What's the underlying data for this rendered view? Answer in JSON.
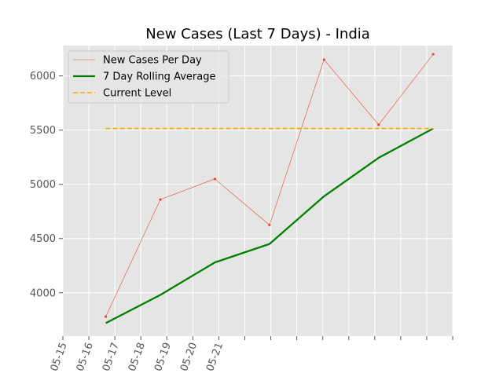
{
  "chart_data": {
    "type": "line",
    "title": "New Cases (Last 7 Days) - India",
    "xlabel": "",
    "ylabel": "",
    "x_tick_labels": [
      "05-15",
      "05-16",
      "05-17",
      "05-18",
      "05-19",
      "05-20",
      "05-21"
    ],
    "ylim": [
      3600,
      6280
    ],
    "y_ticks": [
      4000,
      4500,
      5000,
      5500,
      6000
    ],
    "grid": true,
    "legend_position": "upper-left",
    "series": [
      {
        "name": "New Cases Per Day",
        "style": "thin-line-with-markers",
        "color": "#E24A33",
        "points": [
          {
            "x": 1.65,
            "y": 3780
          },
          {
            "x": 3.75,
            "y": 4860
          },
          {
            "x": 5.85,
            "y": 5050
          },
          {
            "x": 7.95,
            "y": 4625
          },
          {
            "x": 10.05,
            "y": 6150
          },
          {
            "x": 12.15,
            "y": 5550
          },
          {
            "x": 14.25,
            "y": 6200
          }
        ]
      },
      {
        "name": "7 Day Rolling Average",
        "style": "thick-line",
        "color": "#008000",
        "points": [
          {
            "x": 1.65,
            "y": 3720
          },
          {
            "x": 3.75,
            "y": 3980
          },
          {
            "x": 5.85,
            "y": 4280
          },
          {
            "x": 7.95,
            "y": 4450
          },
          {
            "x": 10.05,
            "y": 4890
          },
          {
            "x": 12.15,
            "y": 5245
          },
          {
            "x": 14.25,
            "y": 5515
          }
        ]
      },
      {
        "name": "Current Level",
        "style": "dashed-line",
        "color": "#FFA500",
        "points": [
          {
            "x": 1.65,
            "y": 5515
          },
          {
            "x": 14.25,
            "y": 5515
          }
        ]
      }
    ]
  }
}
